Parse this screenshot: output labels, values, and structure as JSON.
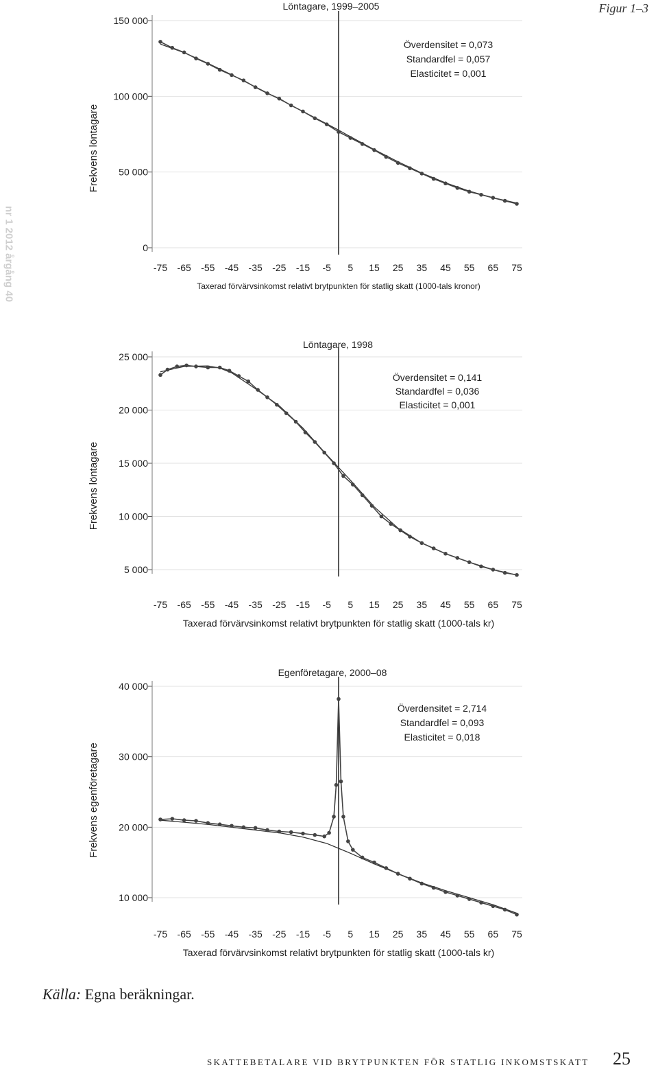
{
  "figure_label": "Figur 1–3",
  "journal_tag": "nr 1 2012 årgång 40",
  "source": {
    "lead": "Källa:",
    "text": " Egna beräkningar."
  },
  "running_head": "SKATTEBETALARE VID BRYTPUNKTEN FÖR STATLIG INKOMSTSKATT",
  "page_number": "25",
  "chart_data": [
    {
      "type": "scatter",
      "title": "Löntagare, 1999–2005",
      "xlabel": "Taxerad förvärvsinkomst relativt brytpunkten för statlig skatt (1000-tals kronor)",
      "ylabel": "Frekvens löntagare",
      "xlim": [
        -75,
        75
      ],
      "ylim": [
        0,
        150000
      ],
      "x_ticks": [
        -75,
        -65,
        -55,
        -45,
        -35,
        -25,
        -15,
        -5,
        5,
        15,
        25,
        35,
        45,
        55,
        65,
        75
      ],
      "y_ticks": [
        0,
        50000,
        100000,
        150000
      ],
      "y_tick_labels": [
        "0",
        "50 000",
        "100 000",
        "150 000"
      ],
      "stats": [
        "Överdensitet = 0,073",
        "Standardfel = 0,057",
        "Elasticitet = 0,001"
      ],
      "vline_x": 0,
      "points": [
        [
          -75,
          136000
        ],
        [
          -70,
          132000
        ],
        [
          -65,
          129000
        ],
        [
          -60,
          125000
        ],
        [
          -55,
          121500
        ],
        [
          -50,
          117500
        ],
        [
          -45,
          114000
        ],
        [
          -40,
          110500
        ],
        [
          -35,
          106000
        ],
        [
          -30,
          102000
        ],
        [
          -25,
          98500
        ],
        [
          -20,
          94000
        ],
        [
          -15,
          90000
        ],
        [
          -10,
          85500
        ],
        [
          -5,
          81500
        ],
        [
          0,
          76500
        ],
        [
          5,
          72500
        ],
        [
          10,
          68500
        ],
        [
          15,
          64500
        ],
        [
          20,
          60000
        ],
        [
          25,
          56000
        ],
        [
          30,
          52500
        ],
        [
          35,
          49000
        ],
        [
          40,
          45500
        ],
        [
          45,
          42500
        ],
        [
          50,
          39500
        ],
        [
          55,
          37000
        ],
        [
          60,
          35000
        ],
        [
          65,
          33000
        ],
        [
          70,
          31000
        ],
        [
          75,
          29000
        ]
      ],
      "fit": [
        [
          -75,
          134500
        ],
        [
          -65,
          128800
        ],
        [
          -55,
          121800
        ],
        [
          -45,
          114200
        ],
        [
          -35,
          106200
        ],
        [
          -25,
          98200
        ],
        [
          -15,
          90000
        ],
        [
          -5,
          81800
        ],
        [
          0,
          77700
        ],
        [
          5,
          73300
        ],
        [
          15,
          64800
        ],
        [
          25,
          56800
        ],
        [
          35,
          49300
        ],
        [
          45,
          42900
        ],
        [
          55,
          37400
        ],
        [
          65,
          33000
        ],
        [
          75,
          29500
        ]
      ]
    },
    {
      "type": "scatter",
      "title": "Löntagare, 1998",
      "xlabel": "Taxerad förvärvsinkomst relativt brytpunkten för statlig skatt (1000-tals kr)",
      "ylabel": "Frekvens löntagare",
      "xlim": [
        -75,
        75
      ],
      "ylim": [
        5000,
        25000
      ],
      "x_ticks": [
        -75,
        -65,
        -55,
        -45,
        -35,
        -25,
        -15,
        -5,
        5,
        15,
        25,
        35,
        45,
        55,
        65,
        75
      ],
      "y_ticks": [
        5000,
        10000,
        15000,
        20000,
        25000
      ],
      "y_tick_labels": [
        "5 000",
        "10 000",
        "15 000",
        "20 000",
        "25 000"
      ],
      "stats": [
        "Överdensitet = 0,141",
        "Standardfel = 0,036",
        "Elasticitet = 0,001"
      ],
      "vline_x": 0,
      "points": [
        [
          -75,
          23300
        ],
        [
          -72,
          23800
        ],
        [
          -68,
          24100
        ],
        [
          -64,
          24200
        ],
        [
          -60,
          24100
        ],
        [
          -55,
          24000
        ],
        [
          -50,
          24000
        ],
        [
          -46,
          23700
        ],
        [
          -42,
          23200
        ],
        [
          -38,
          22700
        ],
        [
          -34,
          21900
        ],
        [
          -30,
          21200
        ],
        [
          -26,
          20500
        ],
        [
          -22,
          19700
        ],
        [
          -18,
          18900
        ],
        [
          -14,
          17900
        ],
        [
          -10,
          17000
        ],
        [
          -6,
          16000
        ],
        [
          -2,
          15000
        ],
        [
          2,
          13800
        ],
        [
          6,
          13000
        ],
        [
          10,
          12000
        ],
        [
          14,
          11000
        ],
        [
          18,
          10000
        ],
        [
          22,
          9300
        ],
        [
          26,
          8700
        ],
        [
          30,
          8100
        ],
        [
          35,
          7500
        ],
        [
          40,
          7000
        ],
        [
          45,
          6500
        ],
        [
          50,
          6100
        ],
        [
          55,
          5700
        ],
        [
          60,
          5300
        ],
        [
          65,
          5000
        ],
        [
          70,
          4700
        ],
        [
          75,
          4500
        ]
      ],
      "fit": [
        [
          -75,
          23600
        ],
        [
          -65,
          24100
        ],
        [
          -55,
          24150
        ],
        [
          -50,
          23950
        ],
        [
          -45,
          23500
        ],
        [
          -35,
          22000
        ],
        [
          -25,
          20400
        ],
        [
          -15,
          18300
        ],
        [
          -5,
          15800
        ],
        [
          0,
          14600
        ],
        [
          5,
          13400
        ],
        [
          15,
          10900
        ],
        [
          25,
          8900
        ],
        [
          35,
          7500
        ],
        [
          45,
          6500
        ],
        [
          55,
          5700
        ],
        [
          65,
          5000
        ],
        [
          75,
          4500
        ]
      ]
    },
    {
      "type": "scatter",
      "title": "Egenföretagare, 2000–08",
      "xlabel": "Taxerad förvärvsinkomst relativt brytpunkten för statlig skatt (1000-tals kr)",
      "ylabel": "Frekvens egenföretagare",
      "xlim": [
        -75,
        75
      ],
      "ylim": [
        10000,
        40000
      ],
      "x_ticks": [
        -75,
        -65,
        -55,
        -45,
        -35,
        -25,
        -15,
        -5,
        5,
        15,
        25,
        35,
        45,
        55,
        65,
        75
      ],
      "y_ticks": [
        10000,
        20000,
        30000,
        40000
      ],
      "y_tick_labels": [
        "10 000",
        "20 000",
        "30 000",
        "40 000"
      ],
      "stats": [
        "Överdensitet = 2,714",
        "Standardfel = 0,093",
        "Elasticitet = 0,018"
      ],
      "vline_x": 0,
      "points": [
        [
          -75,
          21100
        ],
        [
          -70,
          21200
        ],
        [
          -65,
          21000
        ],
        [
          -60,
          20900
        ],
        [
          -55,
          20600
        ],
        [
          -50,
          20400
        ],
        [
          -45,
          20200
        ],
        [
          -40,
          20000
        ],
        [
          -35,
          19900
        ],
        [
          -30,
          19600
        ],
        [
          -25,
          19400
        ],
        [
          -20,
          19300
        ],
        [
          -15,
          19100
        ],
        [
          -10,
          18900
        ],
        [
          -6,
          18700
        ],
        [
          -4,
          19200
        ],
        [
          -2,
          21500
        ],
        [
          -1,
          26000
        ],
        [
          0,
          38200
        ],
        [
          1,
          26500
        ],
        [
          2,
          21500
        ],
        [
          4,
          18000
        ],
        [
          6,
          16800
        ],
        [
          10,
          15700
        ],
        [
          15,
          15000
        ],
        [
          20,
          14200
        ],
        [
          25,
          13400
        ],
        [
          30,
          12700
        ],
        [
          35,
          12000
        ],
        [
          40,
          11400
        ],
        [
          45,
          10800
        ],
        [
          50,
          10300
        ],
        [
          55,
          9800
        ],
        [
          60,
          9300
        ],
        [
          65,
          8800
        ],
        [
          70,
          8300
        ],
        [
          75,
          7600
        ]
      ],
      "fit": [
        [
          -75,
          21000
        ],
        [
          -65,
          20700
        ],
        [
          -55,
          20400
        ],
        [
          -45,
          20000
        ],
        [
          -35,
          19600
        ],
        [
          -25,
          19200
        ],
        [
          -15,
          18600
        ],
        [
          -5,
          17700
        ],
        [
          0,
          17000
        ],
        [
          5,
          16300
        ],
        [
          15,
          14800
        ],
        [
          25,
          13400
        ],
        [
          35,
          12100
        ],
        [
          45,
          11000
        ],
        [
          55,
          10000
        ],
        [
          65,
          9000
        ],
        [
          75,
          7800
        ]
      ]
    }
  ]
}
